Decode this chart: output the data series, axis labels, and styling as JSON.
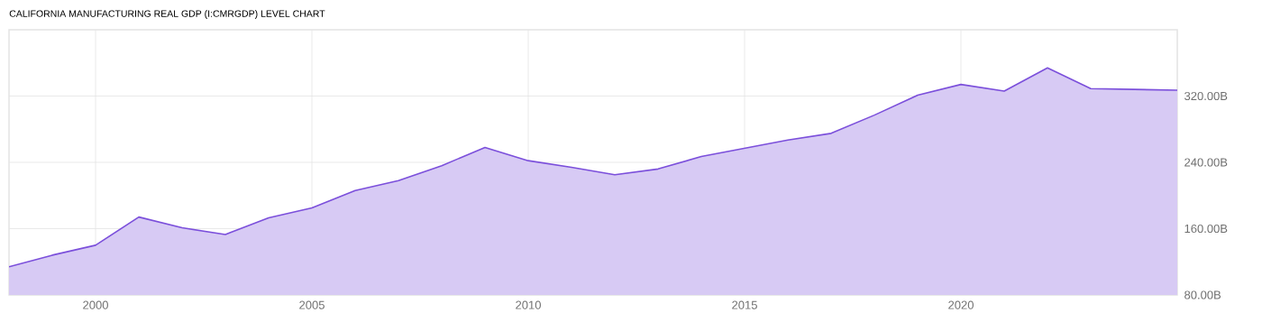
{
  "chart_data": {
    "type": "area",
    "title": "CALIFORNIA MANUFACTURING REAL GDP (I:CMRGDP) LEVEL CHART",
    "x": [
      1998,
      1999,
      2000,
      2001,
      2002,
      2003,
      2004,
      2005,
      2006,
      2007,
      2008,
      2009,
      2010,
      2011,
      2012,
      2013,
      2014,
      2015,
      2016,
      2017,
      2018,
      2019,
      2020,
      2021,
      2022,
      2023,
      2024,
      2025
    ],
    "series": [
      {
        "color": "#7b4fdb",
        "values": [
          114,
          128,
          140,
          174,
          161,
          153,
          173,
          185,
          206,
          218,
          236,
          258,
          242,
          234,
          225,
          232,
          247,
          257,
          267,
          275,
          297,
          321,
          334,
          326,
          354,
          329,
          328,
          327
        ]
      }
    ],
    "xlim": [
      1998,
      2025
    ],
    "xticks": [
      2000,
      2005,
      2010,
      2015,
      2020
    ],
    "ylim": [
      80,
      400
    ],
    "yticks": [
      {
        "value": 80,
        "label": "80.00B"
      },
      {
        "value": 160,
        "label": "160.00B"
      },
      {
        "value": 240,
        "label": "240.00B"
      },
      {
        "value": 320,
        "label": "320.00B"
      }
    ],
    "grid": true,
    "marker": "none",
    "line_style": "solid"
  }
}
